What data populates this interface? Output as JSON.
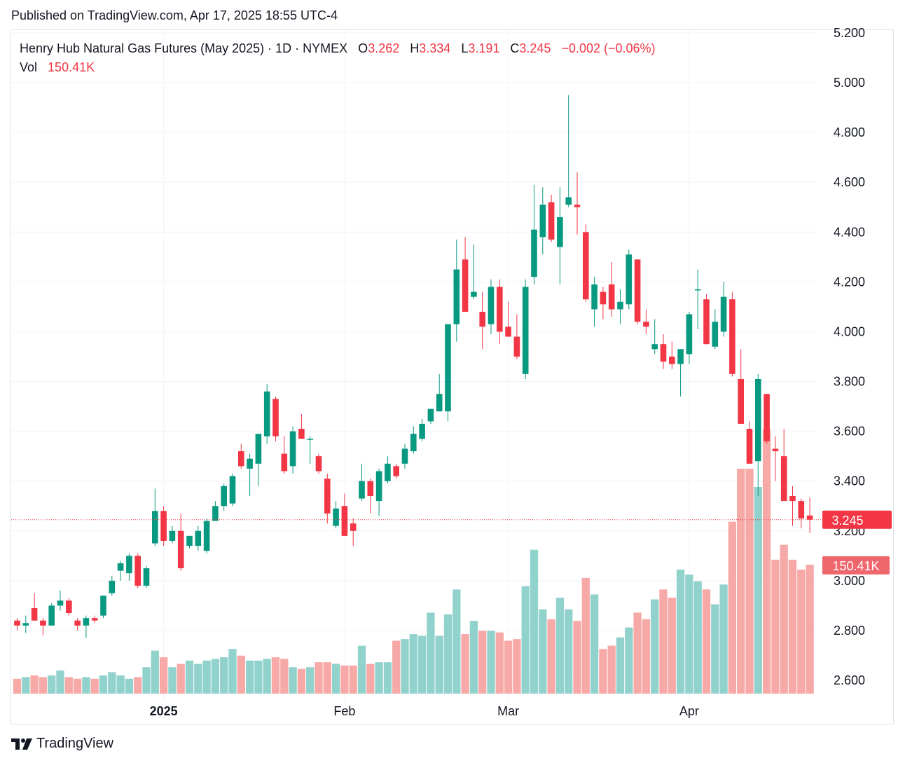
{
  "header": {
    "published": "Published on TradingView.com, Apr 17, 2025 18:55 UTC-4"
  },
  "legend": {
    "instrument": "Henry Hub Natural Gas Futures (May 2025) · 1D · NYMEX",
    "o_label": "O",
    "o_value": "3.262",
    "h_label": "H",
    "h_value": "3.334",
    "l_label": "L",
    "l_value": "3.191",
    "c_label": "C",
    "c_value": "3.245",
    "change": "−0.002 (−0.06%)",
    "vol_label": "Vol",
    "vol_value": "150.41K"
  },
  "footer": {
    "brand": "TradingView"
  },
  "colors": {
    "up": "#089981",
    "down": "#f23645",
    "vol_up": "#92d2cc",
    "vol_down": "#f7a9a7"
  },
  "chart_data": {
    "type": "candlestick",
    "title": "Henry Hub Natural Gas Futures (May 2025)",
    "y_ticks": [
      "2.600",
      "2.800",
      "3.000",
      "3.200",
      "3.400",
      "3.600",
      "3.800",
      "4.000",
      "4.200",
      "4.400",
      "4.600",
      "4.800",
      "5.000",
      "5.200"
    ],
    "ylim": [
      2.55,
      5.2
    ],
    "x_labels": [
      {
        "index": 17,
        "label": "2025",
        "bold": true
      },
      {
        "index": 38,
        "label": "Feb",
        "bold": false
      },
      {
        "index": 57,
        "label": "Mar",
        "bold": false
      },
      {
        "index": 78,
        "label": "Apr",
        "bold": false
      }
    ],
    "last_price_label": "3.245",
    "last_price": 3.245,
    "last_volume_label": "150.41K",
    "volume_scale_max": 1.0,
    "candles": [
      {
        "o": 2.84,
        "h": 2.85,
        "l": 2.8,
        "c": 2.82,
        "v": 0.09
      },
      {
        "o": 2.82,
        "h": 2.86,
        "l": 2.79,
        "c": 2.83,
        "v": 0.1
      },
      {
        "o": 2.89,
        "h": 2.95,
        "l": 2.84,
        "c": 2.84,
        "v": 0.11
      },
      {
        "o": 2.84,
        "h": 2.85,
        "l": 2.78,
        "c": 2.82,
        "v": 0.1
      },
      {
        "o": 2.82,
        "h": 2.91,
        "l": 2.82,
        "c": 2.9,
        "v": 0.11
      },
      {
        "o": 2.9,
        "h": 2.96,
        "l": 2.88,
        "c": 2.92,
        "v": 0.14
      },
      {
        "o": 2.92,
        "h": 2.93,
        "l": 2.86,
        "c": 2.87,
        "v": 0.1
      },
      {
        "o": 2.84,
        "h": 2.85,
        "l": 2.8,
        "c": 2.82,
        "v": 0.09
      },
      {
        "o": 2.82,
        "h": 2.86,
        "l": 2.77,
        "c": 2.85,
        "v": 0.1
      },
      {
        "o": 2.85,
        "h": 2.86,
        "l": 2.83,
        "c": 2.84,
        "v": 0.09
      },
      {
        "o": 2.86,
        "h": 2.94,
        "l": 2.85,
        "c": 2.94,
        "v": 0.11
      },
      {
        "o": 2.95,
        "h": 3.02,
        "l": 2.94,
        "c": 3.0,
        "v": 0.13
      },
      {
        "o": 3.04,
        "h": 3.08,
        "l": 3.0,
        "c": 3.07,
        "v": 0.11
      },
      {
        "o": 3.03,
        "h": 3.11,
        "l": 3.0,
        "c": 3.1,
        "v": 0.09
      },
      {
        "o": 3.1,
        "h": 3.11,
        "l": 2.97,
        "c": 2.98,
        "v": 0.1
      },
      {
        "o": 2.98,
        "h": 3.06,
        "l": 2.97,
        "c": 3.05,
        "v": 0.16
      },
      {
        "o": 3.15,
        "h": 3.37,
        "l": 3.14,
        "c": 3.28,
        "v": 0.26
      },
      {
        "o": 3.28,
        "h": 3.3,
        "l": 3.14,
        "c": 3.16,
        "v": 0.22
      },
      {
        "o": 3.16,
        "h": 3.22,
        "l": 3.15,
        "c": 3.2,
        "v": 0.16
      },
      {
        "o": 3.2,
        "h": 3.27,
        "l": 3.04,
        "c": 3.05,
        "v": 0.18
      },
      {
        "o": 3.14,
        "h": 3.18,
        "l": 3.13,
        "c": 3.18,
        "v": 0.2
      },
      {
        "o": 3.14,
        "h": 3.22,
        "l": 3.12,
        "c": 3.2,
        "v": 0.18
      },
      {
        "o": 3.12,
        "h": 3.25,
        "l": 3.11,
        "c": 3.24,
        "v": 0.2
      },
      {
        "o": 3.24,
        "h": 3.32,
        "l": 3.24,
        "c": 3.3,
        "v": 0.21
      },
      {
        "o": 3.3,
        "h": 3.39,
        "l": 3.28,
        "c": 3.38,
        "v": 0.22
      },
      {
        "o": 3.31,
        "h": 3.43,
        "l": 3.3,
        "c": 3.42,
        "v": 0.27
      },
      {
        "o": 3.52,
        "h": 3.55,
        "l": 3.45,
        "c": 3.46,
        "v": 0.23
      },
      {
        "o": 3.45,
        "h": 3.51,
        "l": 3.34,
        "c": 3.49,
        "v": 0.2
      },
      {
        "o": 3.47,
        "h": 3.59,
        "l": 3.38,
        "c": 3.59,
        "v": 0.2
      },
      {
        "o": 3.58,
        "h": 3.79,
        "l": 3.55,
        "c": 3.76,
        "v": 0.21
      },
      {
        "o": 3.73,
        "h": 3.74,
        "l": 3.56,
        "c": 3.58,
        "v": 0.22
      },
      {
        "o": 3.51,
        "h": 3.58,
        "l": 3.43,
        "c": 3.44,
        "v": 0.21
      },
      {
        "o": 3.46,
        "h": 3.62,
        "l": 3.43,
        "c": 3.6,
        "v": 0.16
      },
      {
        "o": 3.61,
        "h": 3.67,
        "l": 3.57,
        "c": 3.57,
        "v": 0.15
      },
      {
        "o": 3.57,
        "h": 3.58,
        "l": 3.47,
        "c": 3.57,
        "v": 0.16
      },
      {
        "o": 3.5,
        "h": 3.51,
        "l": 3.43,
        "c": 3.44,
        "v": 0.19
      },
      {
        "o": 3.41,
        "h": 3.43,
        "l": 3.23,
        "c": 3.27,
        "v": 0.19
      },
      {
        "o": 3.22,
        "h": 3.32,
        "l": 3.21,
        "c": 3.29,
        "v": 0.18
      },
      {
        "o": 3.3,
        "h": 3.35,
        "l": 3.18,
        "c": 3.18,
        "v": 0.17
      },
      {
        "o": 3.23,
        "h": 3.25,
        "l": 3.14,
        "c": 3.2,
        "v": 0.17
      },
      {
        "o": 3.33,
        "h": 3.47,
        "l": 3.32,
        "c": 3.4,
        "v": 0.29
      },
      {
        "o": 3.4,
        "h": 3.41,
        "l": 3.27,
        "c": 3.34,
        "v": 0.18
      },
      {
        "o": 3.32,
        "h": 3.45,
        "l": 3.26,
        "c": 3.44,
        "v": 0.19
      },
      {
        "o": 3.4,
        "h": 3.5,
        "l": 3.39,
        "c": 3.47,
        "v": 0.19
      },
      {
        "o": 3.46,
        "h": 3.47,
        "l": 3.41,
        "c": 3.42,
        "v": 0.32
      },
      {
        "o": 3.47,
        "h": 3.55,
        "l": 3.45,
        "c": 3.53,
        "v": 0.33
      },
      {
        "o": 3.52,
        "h": 3.62,
        "l": 3.51,
        "c": 3.59,
        "v": 0.36
      },
      {
        "o": 3.57,
        "h": 3.65,
        "l": 3.56,
        "c": 3.63,
        "v": 0.35
      },
      {
        "o": 3.64,
        "h": 3.69,
        "l": 3.63,
        "c": 3.69,
        "v": 0.49
      },
      {
        "o": 3.68,
        "h": 3.83,
        "l": 3.68,
        "c": 3.75,
        "v": 0.35
      },
      {
        "o": 3.68,
        "h": 4.03,
        "l": 3.64,
        "c": 4.03,
        "v": 0.48
      },
      {
        "o": 4.03,
        "h": 4.37,
        "l": 3.96,
        "c": 4.25,
        "v": 0.63
      },
      {
        "o": 4.29,
        "h": 4.38,
        "l": 4.08,
        "c": 4.08,
        "v": 0.36
      },
      {
        "o": 4.14,
        "h": 4.35,
        "l": 4.13,
        "c": 4.16,
        "v": 0.44
      },
      {
        "o": 4.08,
        "h": 4.16,
        "l": 3.93,
        "c": 4.02,
        "v": 0.38
      },
      {
        "o": 4.03,
        "h": 4.21,
        "l": 3.99,
        "c": 4.18,
        "v": 0.38
      },
      {
        "o": 4.18,
        "h": 4.21,
        "l": 3.95,
        "c": 4.0,
        "v": 0.37
      },
      {
        "o": 4.02,
        "h": 4.12,
        "l": 3.98,
        "c": 3.98,
        "v": 0.32
      },
      {
        "o": 3.98,
        "h": 4.07,
        "l": 3.89,
        "c": 3.9,
        "v": 0.33
      },
      {
        "o": 3.83,
        "h": 4.21,
        "l": 3.81,
        "c": 4.18,
        "v": 0.65
      },
      {
        "o": 4.22,
        "h": 4.59,
        "l": 4.19,
        "c": 4.41,
        "v": 0.87
      },
      {
        "o": 4.38,
        "h": 4.58,
        "l": 4.31,
        "c": 4.51,
        "v": 0.51
      },
      {
        "o": 4.52,
        "h": 4.55,
        "l": 4.36,
        "c": 4.37,
        "v": 0.45
      },
      {
        "o": 4.34,
        "h": 4.58,
        "l": 4.19,
        "c": 4.46,
        "v": 0.58
      },
      {
        "o": 4.51,
        "h": 4.95,
        "l": 4.5,
        "c": 4.54,
        "v": 0.51
      },
      {
        "o": 4.51,
        "h": 4.64,
        "l": 4.39,
        "c": 4.5,
        "v": 0.44
      },
      {
        "o": 4.4,
        "h": 4.43,
        "l": 4.12,
        "c": 4.13,
        "v": 0.7
      },
      {
        "o": 4.09,
        "h": 4.22,
        "l": 4.02,
        "c": 4.19,
        "v": 0.6
      },
      {
        "o": 4.16,
        "h": 4.18,
        "l": 4.05,
        "c": 4.11,
        "v": 0.27
      },
      {
        "o": 4.19,
        "h": 4.28,
        "l": 4.06,
        "c": 4.09,
        "v": 0.29
      },
      {
        "o": 4.09,
        "h": 4.17,
        "l": 4.03,
        "c": 4.12,
        "v": 0.34
      },
      {
        "o": 4.11,
        "h": 4.33,
        "l": 4.09,
        "c": 4.31,
        "v": 0.4
      },
      {
        "o": 4.29,
        "h": 4.29,
        "l": 4.03,
        "c": 4.04,
        "v": 0.49
      },
      {
        "o": 4.04,
        "h": 4.09,
        "l": 3.99,
        "c": 4.02,
        "v": 0.45
      },
      {
        "o": 3.93,
        "h": 4.05,
        "l": 3.91,
        "c": 3.95,
        "v": 0.57
      },
      {
        "o": 3.95,
        "h": 3.99,
        "l": 3.85,
        "c": 3.88,
        "v": 0.63
      },
      {
        "o": 3.9,
        "h": 3.96,
        "l": 3.85,
        "c": 3.87,
        "v": 0.58
      },
      {
        "o": 3.87,
        "h": 3.93,
        "l": 3.74,
        "c": 3.93,
        "v": 0.75
      },
      {
        "o": 3.91,
        "h": 4.08,
        "l": 3.87,
        "c": 4.07,
        "v": 0.72
      },
      {
        "o": 4.17,
        "h": 4.25,
        "l": 4.01,
        "c": 4.17,
        "v": 0.68
      },
      {
        "o": 4.13,
        "h": 4.15,
        "l": 3.95,
        "c": 3.95,
        "v": 0.63
      },
      {
        "o": 3.94,
        "h": 4.09,
        "l": 3.93,
        "c": 4.04,
        "v": 0.54
      },
      {
        "o": 4.0,
        "h": 4.2,
        "l": 3.98,
        "c": 4.14,
        "v": 0.66
      },
      {
        "o": 4.13,
        "h": 4.16,
        "l": 3.82,
        "c": 3.83,
        "v": 1.04
      },
      {
        "o": 3.81,
        "h": 3.93,
        "l": 3.63,
        "c": 3.63,
        "v": 1.36
      },
      {
        "o": 3.61,
        "h": 3.64,
        "l": 3.47,
        "c": 3.47,
        "v": 1.36
      },
      {
        "o": 3.48,
        "h": 3.83,
        "l": 3.34,
        "c": 3.81,
        "v": 1.25
      },
      {
        "o": 3.75,
        "h": 3.75,
        "l": 3.55,
        "c": 3.56,
        "v": 1.6
      },
      {
        "o": 3.53,
        "h": 3.58,
        "l": 3.4,
        "c": 3.52,
        "v": 0.81
      },
      {
        "o": 3.5,
        "h": 3.61,
        "l": 3.32,
        "c": 3.32,
        "v": 0.9
      },
      {
        "o": 3.34,
        "h": 3.38,
        "l": 3.22,
        "c": 3.32,
        "v": 0.81
      },
      {
        "o": 3.32,
        "h": 3.33,
        "l": 3.21,
        "c": 3.25,
        "v": 0.75
      },
      {
        "o": 3.262,
        "h": 3.334,
        "l": 3.191,
        "c": 3.245,
        "v": 0.78
      }
    ]
  }
}
